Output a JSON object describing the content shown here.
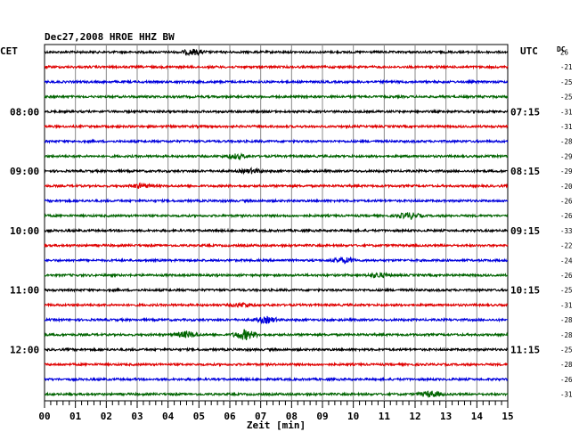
{
  "header": {
    "title": "Dec27,2008   HROE HHZ BW",
    "left_tz": "CET",
    "right_tz": "UTC",
    "dc_label": "DC"
  },
  "chart_data": {
    "type": "line",
    "title": "Dec27,2008   HROE HHZ BW",
    "xlabel": "Zeit [min]",
    "xlim": [
      0,
      15
    ],
    "x_ticks": [
      "00",
      "01",
      "02",
      "03",
      "04",
      "05",
      "06",
      "07",
      "08",
      "09",
      "10",
      "11",
      "12",
      "13",
      "14",
      "15"
    ],
    "grid": true,
    "trace_colors": [
      "#000000",
      "#e00000",
      "#0000dd",
      "#006400"
    ],
    "left_time_labels": [
      {
        "trace": 4,
        "text": "08:00"
      },
      {
        "trace": 8,
        "text": "09:00"
      },
      {
        "trace": 12,
        "text": "10:00"
      },
      {
        "trace": 16,
        "text": "11:00"
      },
      {
        "trace": 20,
        "text": "12:00"
      }
    ],
    "right_time_labels": [
      {
        "trace": 4,
        "text": "07:15"
      },
      {
        "trace": 8,
        "text": "08:15"
      },
      {
        "trace": 12,
        "text": "09:15"
      },
      {
        "trace": 16,
        "text": "10:15"
      },
      {
        "trace": 20,
        "text": "11:15"
      }
    ],
    "dc_offsets": [
      "26",
      "-21",
      "-25",
      "-25",
      "-31",
      "-31",
      "-28",
      "-29",
      "-29",
      "-20",
      "-26",
      "-26",
      "-33",
      "-22",
      "-24",
      "-26",
      "-25",
      "-31",
      "-28",
      "-28",
      "-25",
      "-28",
      "-26",
      "-31"
    ],
    "events": [
      {
        "trace": 0,
        "minute": 4.8,
        "amp": 1.5
      },
      {
        "trace": 7,
        "minute": 6.2,
        "amp": 1.3
      },
      {
        "trace": 8,
        "minute": 6.7,
        "amp": 1.2
      },
      {
        "trace": 9,
        "minute": 3.1,
        "amp": 1.2
      },
      {
        "trace": 11,
        "minute": 11.8,
        "amp": 1.8
      },
      {
        "trace": 14,
        "minute": 9.7,
        "amp": 1.6
      },
      {
        "trace": 15,
        "minute": 10.8,
        "amp": 1.3
      },
      {
        "trace": 17,
        "minute": 6.4,
        "amp": 1.2
      },
      {
        "trace": 18,
        "minute": 7.2,
        "amp": 1.8
      },
      {
        "trace": 19,
        "minute": 6.5,
        "amp": 3.0
      },
      {
        "trace": 19,
        "minute": 4.6,
        "amp": 1.8
      },
      {
        "trace": 23,
        "minute": 12.5,
        "amp": 1.8
      }
    ]
  }
}
